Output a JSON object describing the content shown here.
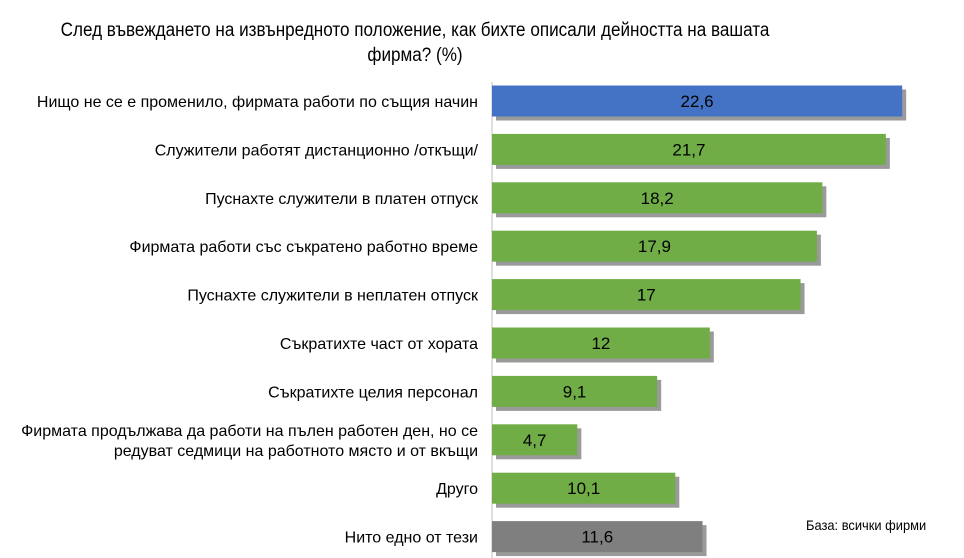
{
  "chart_data": {
    "type": "bar",
    "orientation": "horizontal",
    "title": "След въвеждането на извънредното положение, как бихте описали дейността на вашата фирма? (%)",
    "note": "База: всички фирми",
    "xlabel": "",
    "ylabel": "",
    "xlim": [
      0,
      23
    ],
    "grid": false,
    "legend": "none",
    "categories": [
      "Нищо не се е променило, фирмата работи по същия начин",
      "Служители работят дистанционно /откъщи/",
      "Пуснахте служители в платен отпуск",
      "Фирмата работи със съкратено работно време",
      "Пуснахте служители в неплатен отпуск",
      "Съкратихте част от хората",
      "Съкратихте целия персонал",
      "Фирмата продължава да работи на пълен работен ден, но се редуват седмици на работното място и от вкъщи",
      "Друго",
      "Нито едно от тези"
    ],
    "values": [
      22.6,
      21.7,
      18.2,
      17.9,
      17,
      12,
      9.1,
      4.7,
      10.1,
      11.6
    ],
    "value_labels": [
      "22,6",
      "21,7",
      "18,2",
      "17,9",
      "17",
      "12",
      "9,1",
      "4,7",
      "10,1",
      "11,6"
    ],
    "category_label_lines": [
      [
        "Нищо не се е променило, фирмата работи по същия начин"
      ],
      [
        "Служители работят дистанционно /откъщи/"
      ],
      [
        "Пуснахте служители в платен отпуск"
      ],
      [
        "Фирмата работи със съкратено работно време"
      ],
      [
        "Пуснахте служители в неплатен отпуск"
      ],
      [
        "Съкратихте част от хората"
      ],
      [
        "Съкратихте целия персонал"
      ],
      [
        "Фирмата продължава да работи на пълен работен ден, но се",
        "редуват седмици на работното място и от вкъщи"
      ],
      [
        "Друго"
      ],
      [
        "Нито едно от тези"
      ]
    ],
    "bar_colors": [
      "#4472C4",
      "#70AD47",
      "#70AD47",
      "#70AD47",
      "#70AD47",
      "#70AD47",
      "#70AD47",
      "#70AD47",
      "#70AD47",
      "#7F7F7F"
    ],
    "bar_shadow_color": "#9A9A9A",
    "axis_color": "#BFBFBF",
    "label_color": "#000000"
  }
}
